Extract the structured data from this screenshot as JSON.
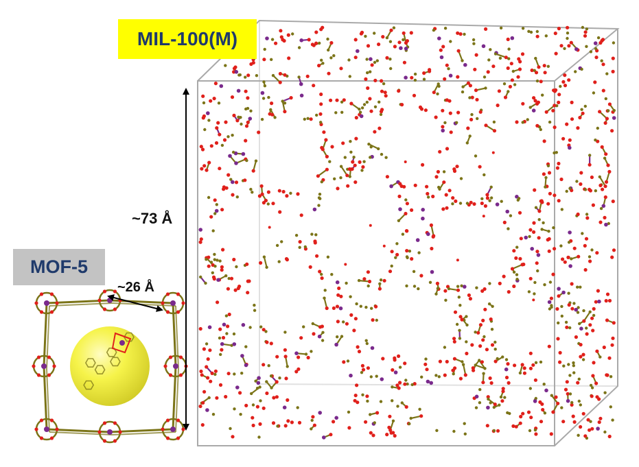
{
  "labels": {
    "framework_large": "MIL-100(M)",
    "framework_small": "MOF-5",
    "dimension_large": "~73 Å",
    "dimension_small": "~26 Å"
  },
  "colors": {
    "label_large_bg": "#ffff00",
    "label_small_bg": "#c3c3c3",
    "label_text": "#1f3a6b",
    "oxygen": "#e0201b",
    "carbon": "#7b7418",
    "metal": "#7a2a8c",
    "pore_sphere": "#f0ee1a",
    "cell_box": "#a9a9a9"
  }
}
